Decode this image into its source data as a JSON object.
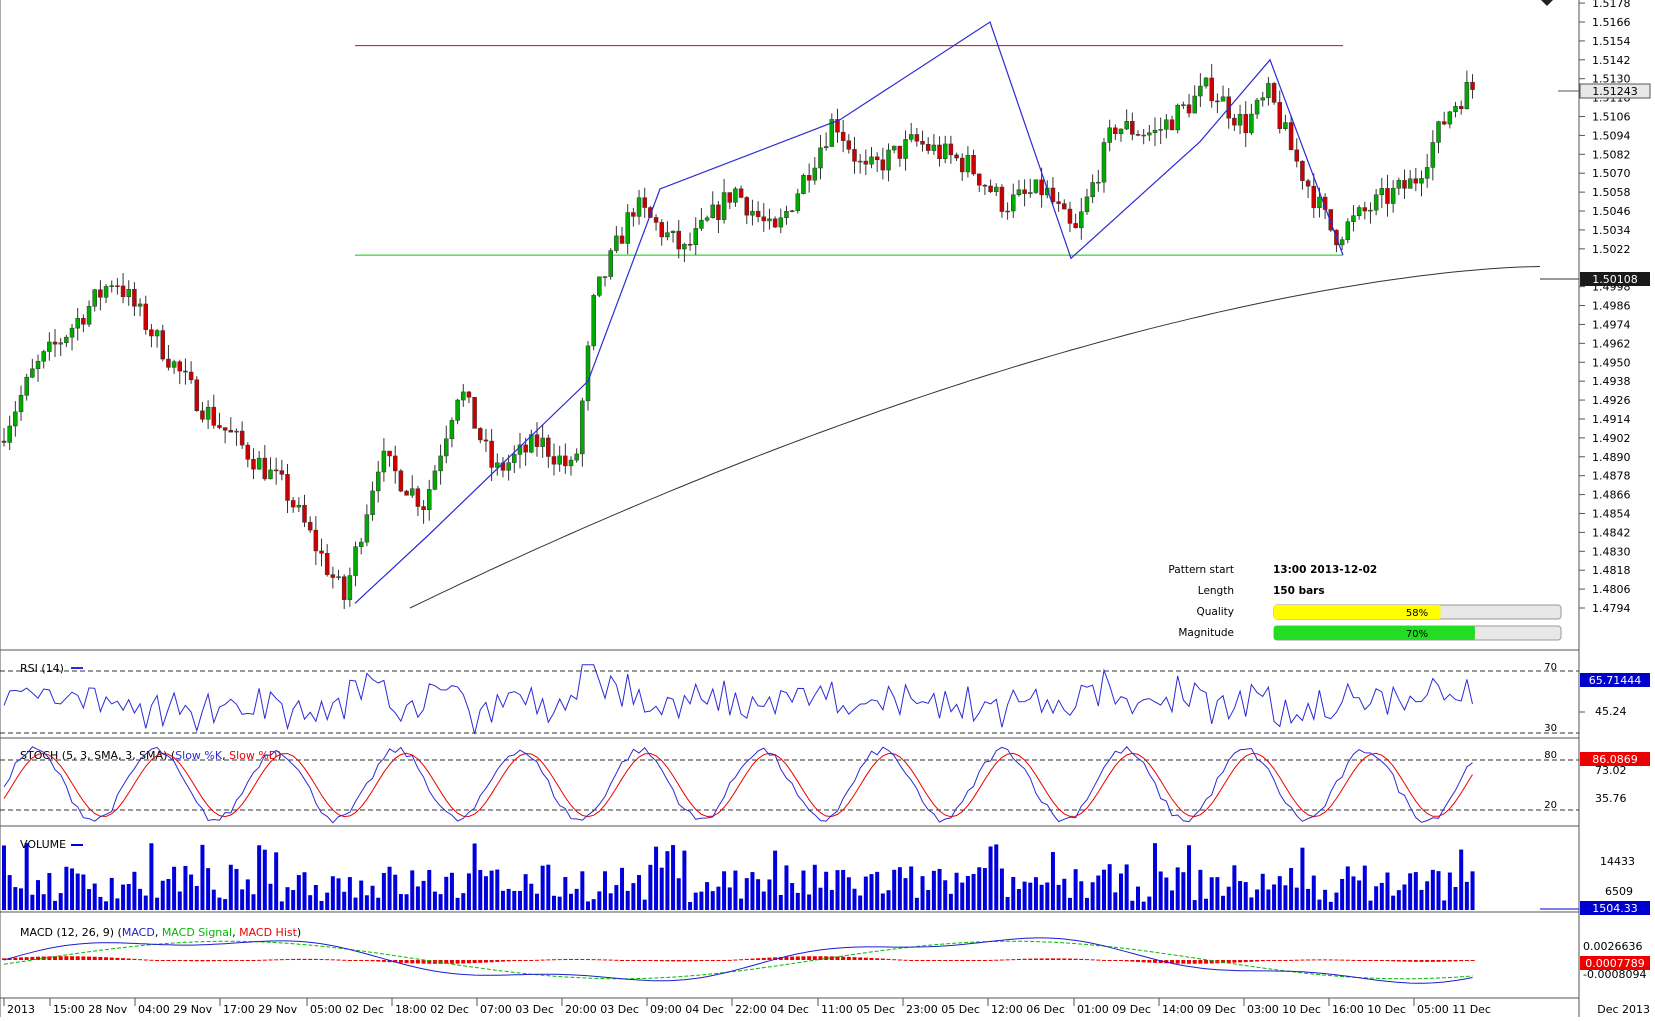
{
  "main_axis": {
    "labels": [
      "1.5178",
      "1.5166",
      "1.5154",
      "1.5142",
      "1.5130",
      "1.5118",
      "1.5106",
      "1.5094",
      "1.5082",
      "1.5070",
      "1.5058",
      "1.5046",
      "1.5034",
      "1.5022",
      "1.4998",
      "1.4986",
      "1.4974",
      "1.4962",
      "1.4950",
      "1.4938",
      "1.4926",
      "1.4914",
      "1.4902",
      "1.4890",
      "1.4878",
      "1.4866",
      "1.4854",
      "1.4842",
      "1.4830",
      "1.4818",
      "1.4806",
      "1.4794"
    ],
    "current_price_label": "1.51243",
    "ma_label": "1.50108"
  },
  "pattern_info": {
    "start_label": "Pattern start",
    "start_value": "13:00 2013-12-02",
    "length_label": "Length",
    "length_value": "150 bars",
    "quality_label": "Quality",
    "quality_value": "58%",
    "quality_fraction": 0.58,
    "magnitude_label": "Magnitude",
    "magnitude_value": "70%",
    "magnitude_fraction": 0.7
  },
  "rsi": {
    "title": "RSI (14)",
    "level_high": "70",
    "level_mid": "45.24",
    "level_low": "30",
    "value_label": "65.71444"
  },
  "stoch": {
    "title_prefix": "STOCH (5, 3, SMA, 3, SMA) (",
    "k_label": "Slow %K",
    "sep": ", ",
    "d_label": "Slow %D",
    "title_suffix": ")",
    "level_high": "80",
    "level_a": "73.02",
    "level_b": "35.76",
    "level_low": "20",
    "value_label": "86.0869"
  },
  "volume": {
    "title": "VOLUME",
    "level_a": "14433",
    "level_b": "6509",
    "value_label": "1504.33"
  },
  "macd": {
    "title_prefix": "MACD (12, 26, 9) (",
    "macd_label": "MACD",
    "signal_label": "MACD Signal",
    "hist_label": "MACD Hist",
    "sep": ", ",
    "title_suffix": ")",
    "level_a": "0.0026636",
    "level_b": "-0.0008094",
    "value_label": "0.0007789"
  },
  "time_axis": {
    "labels": [
      "2013",
      "15:00 28 Nov",
      "04:00 29 Nov",
      "17:00 29 Nov",
      "05:00 02 Dec",
      "18:00 02 Dec",
      "07:00 03 Dec",
      "20:00 03 Dec",
      "09:00 04 Dec",
      "22:00 04 Dec",
      "11:00 05 Dec",
      "23:00 05 Dec",
      "12:00 06 Dec",
      "01:00 09 Dec",
      "14:00 09 Dec",
      "03:00 10 Dec",
      "16:00 10 Dec",
      "05:00 11 Dec"
    ],
    "end_label": "Dec 2013"
  },
  "colors": {
    "bull": "#00aa00",
    "bear": "#cc0000",
    "pattern_line": "#2b2bd6",
    "resistance": "#ee0000",
    "support": "#00cc00",
    "ma": "#333333",
    "rsi": "#2b2bd6",
    "stoch_k": "#2b2bd6",
    "stoch_d": "#ee0000",
    "volume": "#0000dd",
    "macd": "#1c1cd0",
    "macd_signal": "#00bb00",
    "macd_hist": "#ee0000",
    "label_box": "#0000cc",
    "quality_bar": "#ffff00",
    "magnitude_bar": "#22dd22"
  },
  "chart_data": {
    "type": "line",
    "series": [
      {
        "name": "",
        "x": [
          "05:00 02 Dec",
          "18:00 02 Dec",
          "20:00 03 Dec",
          "09:00 04 Dec",
          "11:00 05 Dec",
          "12:00 06 Dec",
          "01:00 09 Dec",
          "14:00 09 Dec",
          "03:00 10 Dec",
          "16:00 10 Dec"
        ],
        "y": [
          1.4797,
          1.484,
          1.4938,
          1.506,
          1.5104,
          1.5166,
          1.5016,
          1.509,
          1.5142,
          1.5018
        ]
      }
    ],
    "resistance": 1.5151,
    "support": 1.5018,
    "last_close": 1.51243,
    "ma_last": 1.50108,
    "ylim": [
      1.479,
      1.518
    ]
  }
}
